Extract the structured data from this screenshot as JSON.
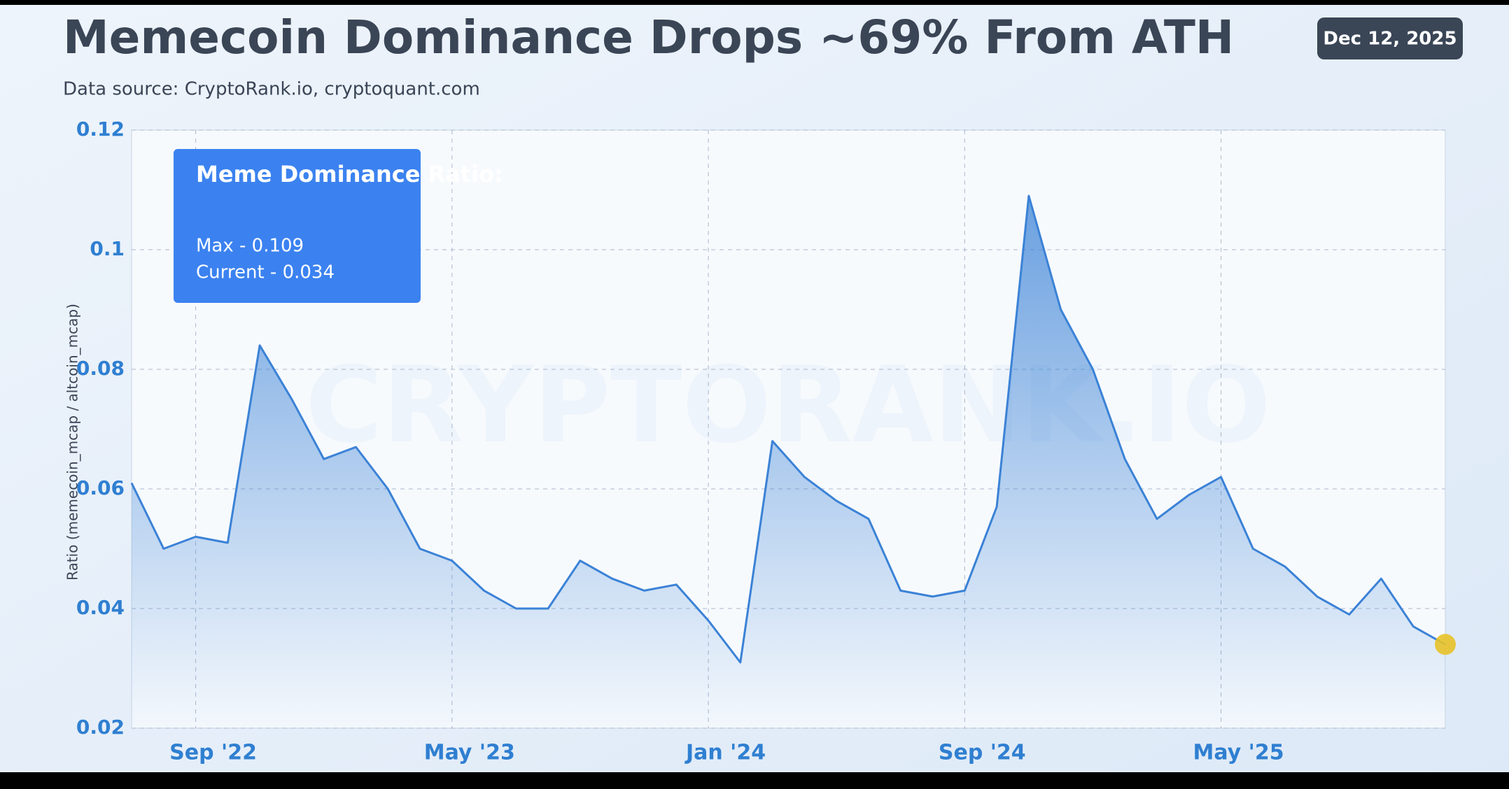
{
  "chart_data": {
    "type": "line",
    "title": "Memecoin Dominance Drops ~69% From ATH",
    "subtitle": "Data source: CryptoRank.io, cryptoquant.com",
    "date": "Dec 12, 2025",
    "y_label": "Ratio (memecoin_mcap / altcoin_mcap)",
    "watermark": "CRYPTORANK.IO",
    "annotation": {
      "title": "Meme Dominance Ratio:",
      "lines": [
        "Max - 0.109",
        "Current - 0.034"
      ]
    },
    "x": [
      "2022-07",
      "2022-08",
      "2022-09",
      "2022-10",
      "2022-11",
      "2022-12",
      "2023-01",
      "2023-02",
      "2023-03",
      "2023-04",
      "2023-05",
      "2023-06",
      "2023-07",
      "2023-08",
      "2023-09",
      "2023-10",
      "2023-11",
      "2023-12",
      "2024-01",
      "2024-02",
      "2024-03",
      "2024-04",
      "2024-05",
      "2024-06",
      "2024-07",
      "2024-08",
      "2024-09",
      "2024-10",
      "2024-11",
      "2024-12",
      "2025-01",
      "2025-02",
      "2025-03",
      "2025-04",
      "2025-05",
      "2025-06",
      "2025-07",
      "2025-08",
      "2025-09",
      "2025-10",
      "2025-11",
      "2025-12"
    ],
    "series": [
      {
        "name": "Meme Dominance Ratio",
        "color": "#3b82d6",
        "values": [
          0.061,
          0.05,
          0.052,
          0.051,
          0.084,
          0.075,
          0.065,
          0.067,
          0.06,
          0.05,
          0.048,
          0.043,
          0.04,
          0.04,
          0.048,
          0.045,
          0.043,
          0.044,
          0.038,
          0.031,
          0.068,
          0.062,
          0.058,
          0.055,
          0.043,
          0.042,
          0.043,
          0.057,
          0.109,
          0.09,
          0.08,
          0.065,
          0.055,
          0.059,
          0.062,
          0.05,
          0.047,
          0.042,
          0.039,
          0.045,
          0.037,
          0.034
        ]
      }
    ],
    "xlim": [
      "2022-07",
      "2025-12"
    ],
    "xticks": [
      {
        "value": "2022-09",
        "label": "Sep '22"
      },
      {
        "value": "2023-05",
        "label": "May '23"
      },
      {
        "value": "2024-01",
        "label": "Jan '24"
      },
      {
        "value": "2024-09",
        "label": "Sep '24"
      },
      {
        "value": "2025-05",
        "label": "May '25"
      }
    ],
    "ylim": [
      0.02,
      0.12
    ],
    "yticks": [
      0.02,
      0.04,
      0.06,
      0.08,
      0.1,
      0.12
    ],
    "grid": true
  }
}
